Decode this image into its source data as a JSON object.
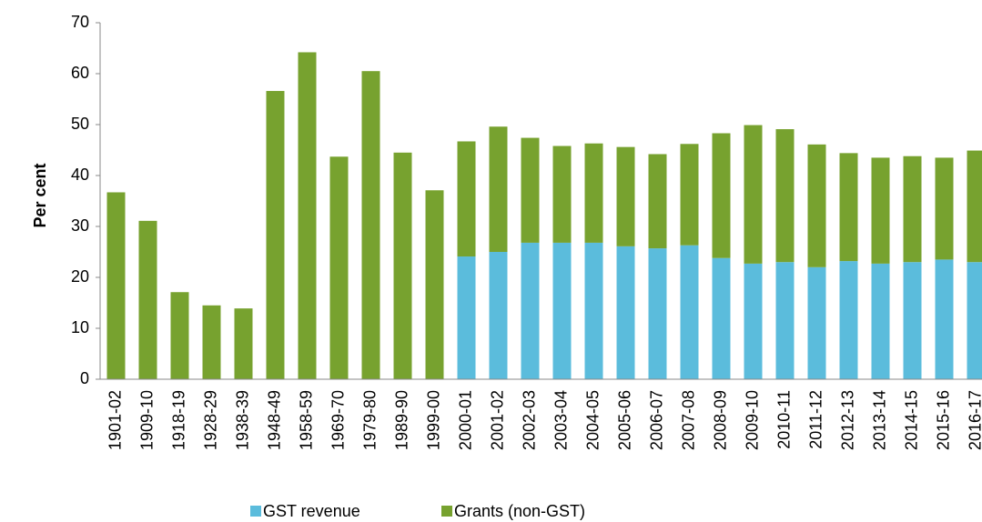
{
  "chart_data": {
    "type": "stacked_bar",
    "y_label": "Per cent",
    "categories": [
      "1901-02",
      "1909-10",
      "1918-19",
      "1928-29",
      "1938-39",
      "1948-49",
      "1958-59",
      "1969-70",
      "1979-80",
      "1989-90",
      "1999-00",
      "2000-01",
      "2001-02",
      "2002-03",
      "2003-04",
      "2004-05",
      "2005-06",
      "2006-07",
      "2007-08",
      "2008-09",
      "2009-10",
      "2010-11",
      "2011-12",
      "2012-13",
      "2013-14",
      "2014-15",
      "2015-16",
      "2016-17"
    ],
    "series": [
      {
        "name": "GST revenue",
        "color": "#5bbcdc",
        "values": [
          null,
          null,
          null,
          null,
          null,
          null,
          null,
          null,
          null,
          null,
          null,
          24.1,
          25.0,
          26.8,
          26.8,
          26.8,
          26.1,
          25.7,
          26.3,
          23.8,
          22.7,
          23.0,
          22.0,
          23.2,
          22.7,
          23.0,
          23.5,
          23.0
        ]
      },
      {
        "name": "Grants (non-GST)",
        "color": "#77a22f",
        "values": [
          36.7,
          31.1,
          17.1,
          14.5,
          13.9,
          56.6,
          64.2,
          43.7,
          60.5,
          44.5,
          37.1,
          22.6,
          24.6,
          20.6,
          19.0,
          19.5,
          19.5,
          18.5,
          19.9,
          24.5,
          27.2,
          26.1,
          24.1,
          21.2,
          20.8,
          20.8,
          20.0,
          21.9
        ]
      }
    ],
    "ylim": [
      0,
      70
    ],
    "yticks": [
      0,
      10,
      20,
      30,
      40,
      50,
      60,
      70
    ],
    "legend": "bottom"
  }
}
